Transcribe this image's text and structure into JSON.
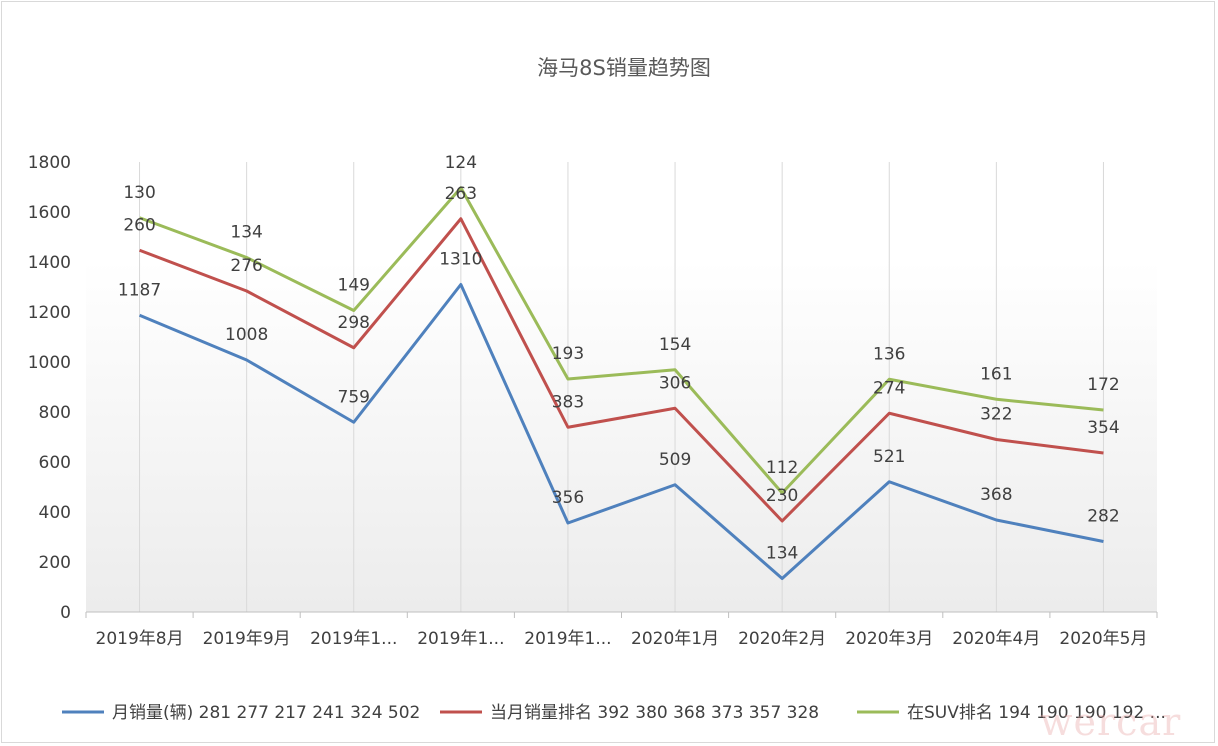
{
  "watermark": "wercar",
  "chart_data": {
    "type": "line",
    "title": "海马8S销量趋势图",
    "stacked": true,
    "categories": [
      "2019年8月",
      "2019年9月",
      "2019年1...",
      "2019年1...",
      "2019年1...",
      "2020年1月",
      "2020年2月",
      "2020年3月",
      "2020年4月",
      "2020年5月"
    ],
    "ylim": [
      0,
      1800
    ],
    "yticks": [
      0,
      200,
      400,
      600,
      800,
      1000,
      1200,
      1400,
      1600,
      1800
    ],
    "grid": "vertical",
    "legend_position": "bottom",
    "series": [
      {
        "name": "月销量(辆) 281 277 217 241 324 502",
        "color": "#4f81bd",
        "values": [
          1187,
          1008,
          759,
          1310,
          356,
          509,
          134,
          521,
          368,
          282
        ]
      },
      {
        "name": "当月销量排名 392 380 368 373 357 328",
        "color": "#c0504d",
        "values": [
          260,
          276,
          298,
          263,
          383,
          306,
          230,
          274,
          322,
          354
        ]
      },
      {
        "name": "在SUV排名 194 190 190 192 ...",
        "color": "#9bbb59",
        "values": [
          130,
          134,
          149,
          124,
          193,
          154,
          112,
          136,
          161,
          172
        ]
      }
    ]
  }
}
